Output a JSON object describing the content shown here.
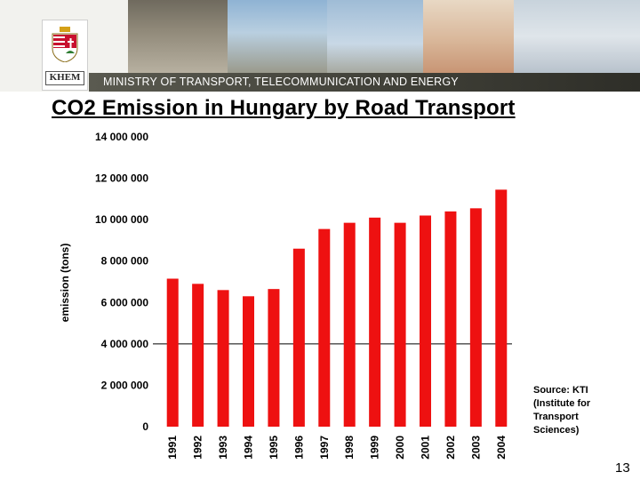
{
  "header": {
    "logo_text": "KHEM",
    "ministry_name": "MINISTRY OF TRANSPORT, TELECOMMUNICATION AND ENERGY",
    "photos": [
      "cars",
      "train",
      "satellite-dish",
      "woman-with-phone",
      "man-with-machinery"
    ]
  },
  "slide": {
    "title": "CO2 Emission in Hungary by Road Transport",
    "source": "Source: KTI (Institute for Transport Sciences)",
    "page_number": "13"
  },
  "colors": {
    "bar": "#ee1111",
    "ministry_bar": "#3e3e36",
    "reference_line": "#000000"
  },
  "chart_data": {
    "type": "bar",
    "title": "CO2 Emission in Hungary by Road Transport",
    "xlabel": "",
    "ylabel": "emission (tons)",
    "categories": [
      "1991",
      "1992",
      "1993",
      "1994",
      "1995",
      "1996",
      "1997",
      "1998",
      "1999",
      "2000",
      "2001",
      "2002",
      "2003",
      "2004"
    ],
    "values": [
      7150000,
      6900000,
      6600000,
      6300000,
      6650000,
      8600000,
      9550000,
      9850000,
      10100000,
      9850000,
      10200000,
      10400000,
      10550000,
      11450000
    ],
    "ylim": [
      0,
      14000000
    ],
    "yticks": [
      0,
      2000000,
      4000000,
      6000000,
      8000000,
      10000000,
      12000000,
      14000000
    ],
    "ytick_labels": [
      "0",
      "2 000 000",
      "4 000 000",
      "6 000 000",
      "8 000 000",
      "10 000 000",
      "12 000 000",
      "14 000 000"
    ],
    "reference_line": 4000000,
    "grid": false,
    "legend": "none"
  }
}
